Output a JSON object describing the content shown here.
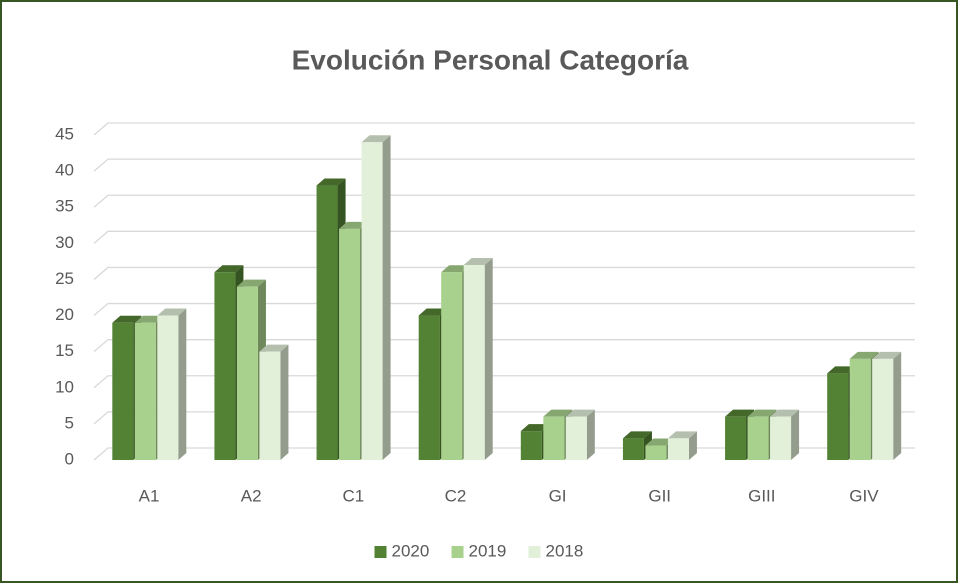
{
  "chart_data": {
    "type": "bar3d",
    "title": "Evolución Personal Categoría",
    "categories": [
      "A1",
      "A2",
      "C1",
      "C2",
      "GI",
      "GII",
      "GIII",
      "GIV"
    ],
    "series": [
      {
        "name": "2020",
        "color": "#548235",
        "values": [
          19,
          26,
          38,
          20,
          4,
          3,
          6,
          12
        ]
      },
      {
        "name": "2019",
        "color": "#a9d18e",
        "values": [
          19,
          24,
          32,
          26,
          6,
          2,
          6,
          14
        ]
      },
      {
        "name": "2018",
        "color": "#e2f0d9",
        "values": [
          20,
          15,
          44,
          27,
          6,
          3,
          6,
          14
        ]
      }
    ],
    "ylim": [
      0,
      45
    ],
    "yticks": [
      0,
      5,
      10,
      15,
      20,
      25,
      30,
      35,
      40,
      45
    ],
    "grid": true,
    "legend": "bottom"
  }
}
